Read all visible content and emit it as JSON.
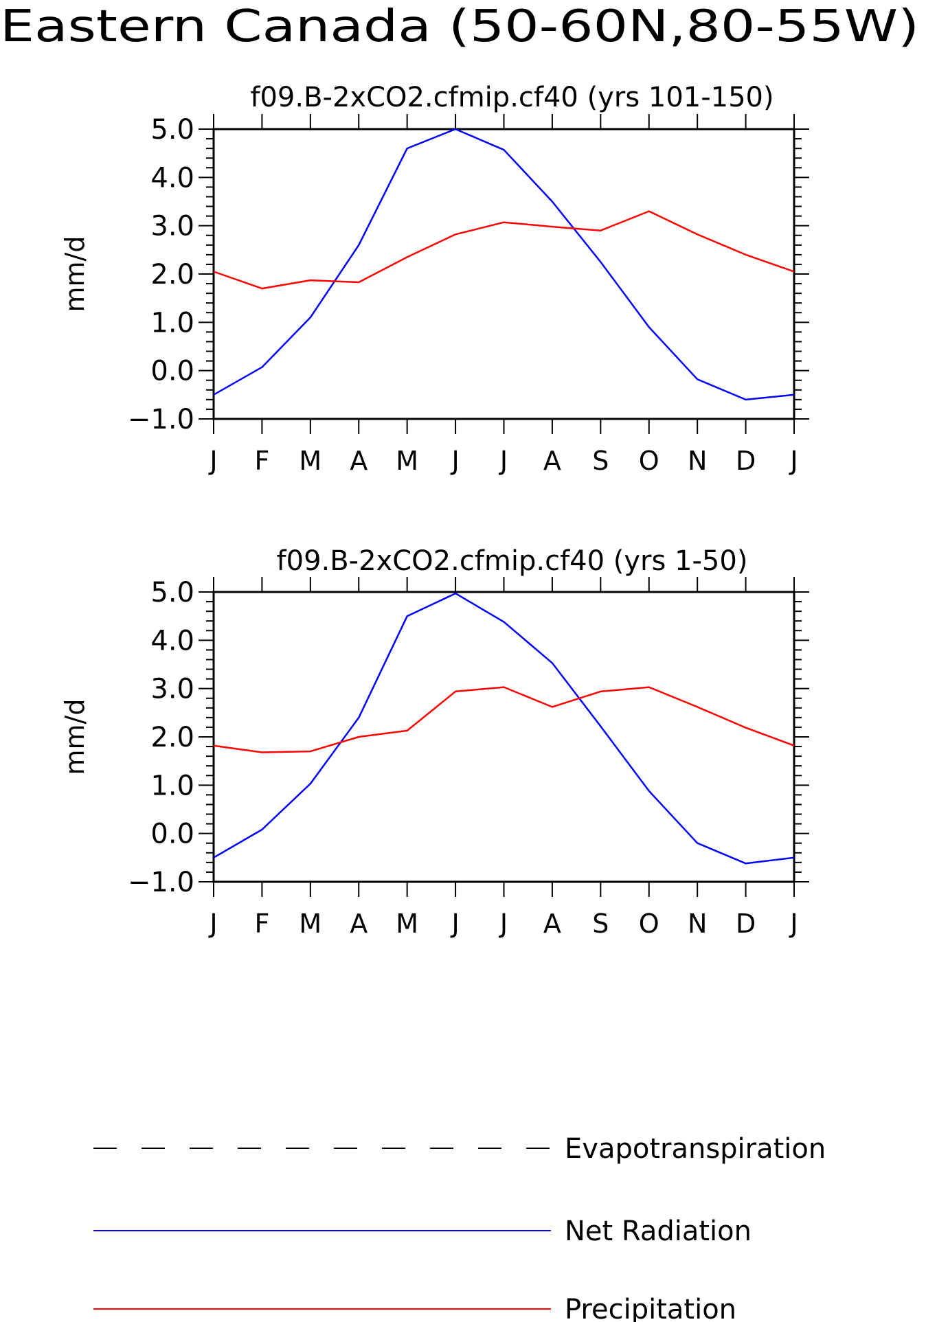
{
  "main_title": "Eastern Canada (50-60N,80-55W)",
  "colors": {
    "net_radiation": "#0000ff",
    "precipitation": "#ff0000",
    "evapotranspiration": "#000000",
    "axes": "#000000"
  },
  "legend": [
    {
      "label": "Evapotranspiration",
      "style": "dashed",
      "color": "#000000"
    },
    {
      "label": "Net Radiation",
      "style": "solid",
      "color": "#0000ff"
    },
    {
      "label": "Precipitation",
      "style": "solid",
      "color": "#ff0000"
    }
  ],
  "chart_data": [
    {
      "type": "line",
      "title": "f09.B-2xCO2.cfmip.cf40 (yrs 101-150)",
      "xlabel": "",
      "ylabel": "mm/d",
      "categories": [
        "J",
        "F",
        "M",
        "A",
        "M",
        "J",
        "J",
        "A",
        "S",
        "O",
        "N",
        "D",
        "J"
      ],
      "ylim": [
        -1.0,
        5.0
      ],
      "yticks": [
        "-1.0",
        "0.0",
        "1.0",
        "2.0",
        "3.0",
        "4.0",
        "5.0"
      ],
      "series": [
        {
          "name": "Net Radiation",
          "color": "#0000ff",
          "values": [
            -0.5,
            0.07,
            1.1,
            2.6,
            4.6,
            5.0,
            4.57,
            3.5,
            2.25,
            0.9,
            -0.18,
            -0.6,
            -0.5
          ]
        },
        {
          "name": "Precipitation",
          "color": "#ff0000",
          "values": [
            2.05,
            1.7,
            1.87,
            1.83,
            2.35,
            2.82,
            3.07,
            2.98,
            2.9,
            3.3,
            2.82,
            2.4,
            2.05
          ]
        }
      ]
    },
    {
      "type": "line",
      "title": "f09.B-2xCO2.cfmip.cf40 (yrs 1-50)",
      "xlabel": "",
      "ylabel": "mm/d",
      "categories": [
        "J",
        "F",
        "M",
        "A",
        "M",
        "J",
        "J",
        "A",
        "S",
        "O",
        "N",
        "D",
        "J"
      ],
      "ylim": [
        -1.0,
        5.0
      ],
      "yticks": [
        "-1.0",
        "0.0",
        "1.0",
        "2.0",
        "3.0",
        "4.0",
        "5.0"
      ],
      "series": [
        {
          "name": "Net Radiation",
          "color": "#0000ff",
          "values": [
            -0.5,
            0.08,
            1.03,
            2.4,
            4.5,
            4.97,
            4.38,
            3.53,
            2.22,
            0.88,
            -0.2,
            -0.62,
            -0.5
          ]
        },
        {
          "name": "Precipitation",
          "color": "#ff0000",
          "values": [
            1.82,
            1.68,
            1.7,
            2.0,
            2.13,
            2.94,
            3.03,
            2.62,
            2.94,
            3.03,
            2.62,
            2.19,
            1.82
          ]
        }
      ]
    }
  ]
}
